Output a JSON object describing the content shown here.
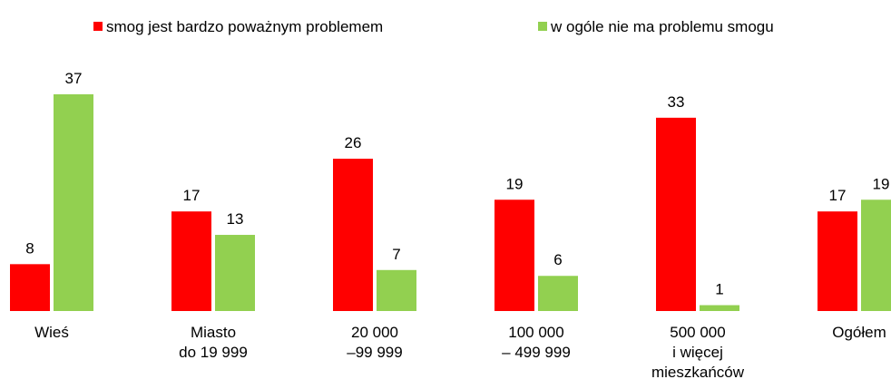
{
  "chart_data": {
    "type": "bar",
    "categories": [
      [
        "Wieś"
      ],
      [
        "Miasto",
        "do 19 999"
      ],
      [
        "20 000",
        "–99 999"
      ],
      [
        "100 000",
        "– 499 999"
      ],
      [
        "500 000",
        "i więcej",
        "mieszkańców"
      ],
      [
        "Ogółem"
      ]
    ],
    "series": [
      {
        "name": "smog jest bardzo poważnym problemem",
        "color": "#ff0000",
        "values": [
          8,
          17,
          26,
          19,
          33,
          17
        ]
      },
      {
        "name": "w ogóle nie ma problemu smogu",
        "color": "#92d050",
        "values": [
          37,
          13,
          7,
          6,
          1,
          19
        ]
      }
    ]
  }
}
